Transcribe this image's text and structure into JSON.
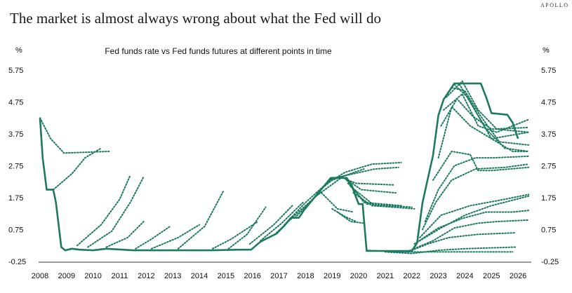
{
  "brand": "APOLLO",
  "title": "The market is almost always wrong about what the Fed will do",
  "chart_data": {
    "type": "line",
    "subtitle": "Fed funds rate vs Fed funds futures at different points in time",
    "ylabel_left": "%",
    "ylabel_right": "%",
    "ylim": [
      -0.25,
      5.75
    ],
    "yticks": [
      "5.75",
      "4.75",
      "3.75",
      "2.75",
      "1.75",
      "0.75",
      "-0.25"
    ],
    "ytick_values": [
      5.75,
      4.75,
      3.75,
      2.75,
      1.75,
      0.75,
      -0.25
    ],
    "xlim": [
      2008,
      2026.5
    ],
    "xticks": [
      "2008",
      "2009",
      "2010",
      "2011",
      "2012",
      "2013",
      "2014",
      "2015",
      "2016",
      "2017",
      "2018",
      "2019",
      "2020",
      "2021",
      "2022",
      "2023",
      "2024",
      "2025",
      "2026"
    ],
    "xtick_values": [
      2008,
      2009,
      2010,
      2011,
      2012,
      2013,
      2014,
      2015,
      2016,
      2017,
      2018,
      2019,
      2020,
      2021,
      2022,
      2023,
      2024,
      2025,
      2026
    ],
    "color": "#1b7a5f",
    "fed_funds_rate": {
      "x": [
        2008.0,
        2008.1,
        2008.25,
        2008.5,
        2008.6,
        2008.8,
        2008.95,
        2009.2,
        2009.5,
        2010.0,
        2010.5,
        2011.5,
        2012.5,
        2013.5,
        2014.5,
        2015.5,
        2015.95,
        2016.3,
        2016.9,
        2017.2,
        2017.45,
        2017.75,
        2017.95,
        2018.2,
        2018.45,
        2018.7,
        2018.95,
        2019.2,
        2019.55,
        2019.75,
        2019.85,
        2020.0,
        2020.15,
        2020.3,
        2021.0,
        2022.0,
        2022.2,
        2022.4,
        2022.6,
        2022.8,
        2023.0,
        2023.2,
        2023.4,
        2023.6,
        2023.8,
        2024.6,
        2024.8,
        2025.0,
        2025.6,
        2025.8,
        2025.9,
        2026.0
      ],
      "y": [
        4.25,
        3.0,
        2.0,
        2.0,
        1.6,
        0.2,
        0.1,
        0.15,
        0.12,
        0.1,
        0.15,
        0.1,
        0.1,
        0.1,
        0.1,
        0.12,
        0.12,
        0.37,
        0.62,
        0.87,
        1.12,
        1.12,
        1.37,
        1.62,
        1.87,
        2.12,
        2.37,
        2.37,
        2.37,
        2.12,
        1.87,
        1.55,
        1.55,
        0.08,
        0.08,
        0.08,
        0.33,
        1.58,
        2.33,
        3.08,
        4.33,
        4.83,
        5.08,
        5.33,
        5.33,
        5.33,
        4.9,
        4.4,
        4.35,
        4.1,
        3.85,
        3.6
      ]
    },
    "futures": [
      {
        "x": [
          2008.0,
          2008.4,
          2008.9,
          2010.6
        ],
        "y": [
          4.25,
          3.6,
          3.15,
          3.2
        ]
      },
      {
        "x": [
          2008.5,
          2009.2,
          2009.7,
          2010.3
        ],
        "y": [
          2.0,
          2.5,
          3.0,
          3.3
        ]
      },
      {
        "x": [
          2009.4,
          2010.3,
          2011.0,
          2011.4
        ],
        "y": [
          0.25,
          0.9,
          1.7,
          2.45
        ]
      },
      {
        "x": [
          2009.8,
          2010.7,
          2011.4,
          2011.9
        ],
        "y": [
          0.2,
          0.7,
          1.6,
          2.4
        ]
      },
      {
        "x": [
          2010.5,
          2011.3,
          2011.9
        ],
        "y": [
          0.2,
          0.5,
          1.0
        ]
      },
      {
        "x": [
          2011.6,
          2012.2,
          2012.9
        ],
        "y": [
          0.15,
          0.45,
          0.85
        ]
      },
      {
        "x": [
          2012.2,
          2013.2,
          2014.0
        ],
        "y": [
          0.15,
          0.5,
          0.9
        ]
      },
      {
        "x": [
          2013.2,
          2014.2,
          2014.9
        ],
        "y": [
          0.15,
          0.85,
          1.95
        ]
      },
      {
        "x": [
          2014.5,
          2015.2,
          2016.2
        ],
        "y": [
          0.15,
          0.45,
          1.0
        ]
      },
      {
        "x": [
          2015.1,
          2015.8,
          2016.5
        ],
        "y": [
          0.15,
          0.6,
          1.45
        ]
      },
      {
        "x": [
          2015.9,
          2016.8,
          2017.5
        ],
        "y": [
          0.3,
          0.9,
          1.5
        ]
      },
      {
        "x": [
          2016.3,
          2017.1,
          2017.9
        ],
        "y": [
          0.4,
          0.95,
          1.6
        ]
      },
      {
        "x": [
          2016.9,
          2017.8,
          2018.6
        ],
        "y": [
          0.65,
          1.35,
          1.95
        ]
      },
      {
        "x": [
          2017.2,
          2018.0,
          2019.0
        ],
        "y": [
          0.9,
          1.6,
          2.35
        ]
      },
      {
        "x": [
          2017.6,
          2018.4,
          2019.3
        ],
        "y": [
          1.12,
          1.8,
          2.35
        ]
      },
      {
        "x": [
          2018.4,
          2019.0,
          2020.2
        ],
        "y": [
          1.9,
          2.3,
          2.65
        ]
      },
      {
        "x": [
          2018.8,
          2019.5,
          2020.5,
          2021.6
        ],
        "y": [
          2.2,
          2.55,
          2.8,
          2.85
        ]
      },
      {
        "x": [
          2019.0,
          2019.8,
          2020.6,
          2021.5
        ],
        "y": [
          2.35,
          2.5,
          2.65,
          2.7
        ]
      },
      {
        "x": [
          2019.3,
          2019.9,
          2021.3
        ],
        "y": [
          2.4,
          2.2,
          2.15
        ]
      },
      {
        "x": [
          2019.5,
          2020.1,
          2021.4
        ],
        "y": [
          2.35,
          2.0,
          1.9
        ]
      },
      {
        "x": [
          2019.55,
          2020.2,
          2021.6
        ],
        "y": [
          2.3,
          1.6,
          1.5
        ]
      },
      {
        "x": [
          2019.6,
          2020.3,
          2022.0
        ],
        "y": [
          2.2,
          1.55,
          1.45
        ]
      },
      {
        "x": [
          2019.7,
          2020.6,
          2022.1
        ],
        "y": [
          2.1,
          1.5,
          1.4
        ]
      },
      {
        "x": [
          2019.8,
          2020.5,
          2021.4
        ],
        "y": [
          1.9,
          1.5,
          1.45
        ]
      },
      {
        "x": [
          2018.6,
          2019.2,
          2019.8
        ],
        "y": [
          1.9,
          1.4,
          1.3
        ]
      },
      {
        "x": [
          2019.0,
          2019.5,
          2019.9
        ],
        "y": [
          1.4,
          1.15,
          1.0
        ]
      },
      {
        "x": [
          2019.2,
          2019.7,
          2020.2
        ],
        "y": [
          1.3,
          1.0,
          0.95
        ]
      },
      {
        "x": [
          2020.3,
          2021.5,
          2022.6,
          2023.5,
          2024.5,
          2025.8
        ],
        "y": [
          0.1,
          0.05,
          0.05,
          0.05,
          0.05,
          0.05
        ]
      },
      {
        "x": [
          2021.0,
          2022.0,
          2023.0,
          2024.0,
          2025.9
        ],
        "y": [
          0.05,
          0.0,
          0.1,
          0.15,
          0.2
        ]
      },
      {
        "x": [
          2022.0,
          2022.6,
          2023.4,
          2024.5,
          2025.9
        ],
        "y": [
          0.1,
          0.3,
          0.5,
          0.6,
          0.65
        ]
      },
      {
        "x": [
          2021.8,
          2022.8,
          2023.6,
          2024.5,
          2025.2,
          2026.4
        ],
        "y": [
          0.05,
          0.4,
          0.8,
          0.95,
          1.0,
          1.05
        ]
      },
      {
        "x": [
          2022.1,
          2023.0,
          2023.9,
          2024.8,
          2025.8,
          2026.4
        ],
        "y": [
          0.3,
          0.8,
          1.1,
          1.3,
          1.3,
          1.35
        ]
      },
      {
        "x": [
          2022.2,
          2023.1,
          2024.0,
          2025.0,
          2026.4
        ],
        "y": [
          0.35,
          0.8,
          1.2,
          1.5,
          1.8
        ]
      },
      {
        "x": [
          2022.3,
          2023.1,
          2024.2,
          2025.5,
          2026.4
        ],
        "y": [
          0.5,
          1.2,
          1.5,
          1.7,
          1.85
        ]
      },
      {
        "x": [
          2022.4,
          2022.9,
          2023.5,
          2024.4,
          2025.5,
          2026.4
        ],
        "y": [
          0.75,
          1.6,
          2.3,
          2.65,
          2.7,
          2.8
        ]
      },
      {
        "x": [
          2022.5,
          2023.0,
          2023.6,
          2024.4,
          2025.1,
          2026.4
        ],
        "y": [
          1.0,
          2.0,
          2.75,
          3.0,
          3.0,
          3.05
        ]
      },
      {
        "x": [
          2022.8,
          2023.5,
          2024.2,
          2024.5,
          2025.0,
          2026.4
        ],
        "y": [
          2.3,
          3.2,
          3.1,
          2.6,
          2.6,
          2.7
        ]
      },
      {
        "x": [
          2023.0,
          2023.5,
          2024.2,
          2025.0,
          2026.4
        ],
        "y": [
          3.0,
          4.6,
          4.0,
          3.6,
          3.8
        ]
      },
      {
        "x": [
          2023.1,
          2023.7,
          2024.3,
          2025.0,
          2026.4
        ],
        "y": [
          4.0,
          4.85,
          4.3,
          3.9,
          3.95
        ]
      },
      {
        "x": [
          2023.2,
          2023.9,
          2024.5,
          2025.2,
          2026.4
        ],
        "y": [
          4.5,
          5.0,
          4.0,
          3.8,
          4.2
        ]
      },
      {
        "x": [
          2023.3,
          2023.9,
          2024.5,
          2025.2,
          2026.4
        ],
        "y": [
          4.9,
          5.4,
          4.5,
          3.9,
          3.8
        ]
      },
      {
        "x": [
          2023.5,
          2024.0,
          2024.6,
          2025.3,
          2026.4
        ],
        "y": [
          5.2,
          5.1,
          4.3,
          3.5,
          3.4
        ]
      },
      {
        "x": [
          2023.6,
          2024.1,
          2024.8,
          2025.5,
          2026.4
        ],
        "y": [
          5.3,
          4.9,
          3.9,
          3.3,
          3.2
        ]
      },
      {
        "x": [
          2023.8,
          2024.3,
          2025.0,
          2025.8,
          2026.4
        ],
        "y": [
          5.3,
          4.6,
          3.6,
          3.2,
          3.2
        ]
      }
    ]
  }
}
